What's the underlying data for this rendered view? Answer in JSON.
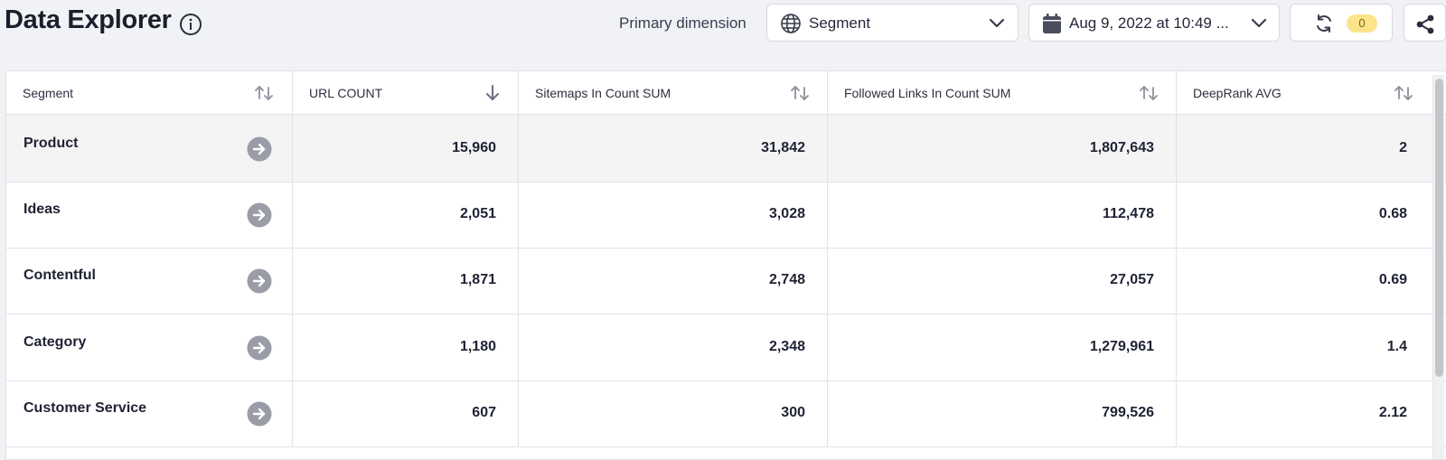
{
  "header": {
    "title": "Data Explorer",
    "info_icon": "info-circle-icon",
    "primary_dimension_label": "Primary dimension",
    "dimension_select": {
      "value": "Segment",
      "icon": "globe-icon"
    },
    "date_select": {
      "value": "Aug 9, 2022 at 10:49 ...",
      "icon": "calendar-icon"
    },
    "refresh": {
      "icon": "refresh-icon",
      "count": "0"
    },
    "share": {
      "icon": "share-icon"
    }
  },
  "table": {
    "columns": [
      {
        "label": "Segment",
        "sort": "unsorted"
      },
      {
        "label": "URL COUNT",
        "sort": "descending"
      },
      {
        "label": "Sitemaps In Count SUM",
        "sort": "unsorted"
      },
      {
        "label": "Followed Links In Count SUM",
        "sort": "unsorted"
      },
      {
        "label": "DeepRank AVG",
        "sort": "unsorted"
      }
    ],
    "rows": [
      {
        "segment": "Product",
        "url_count": "15,960",
        "sitemaps": "31,842",
        "followed_links": "1,807,643",
        "deeprank": "2",
        "selected": true
      },
      {
        "segment": "Ideas",
        "url_count": "2,051",
        "sitemaps": "3,028",
        "followed_links": "112,478",
        "deeprank": "0.68"
      },
      {
        "segment": "Contentful",
        "url_count": "1,871",
        "sitemaps": "2,748",
        "followed_links": "27,057",
        "deeprank": "0.69"
      },
      {
        "segment": "Category",
        "url_count": "1,180",
        "sitemaps": "2,348",
        "followed_links": "1,279,961",
        "deeprank": "1.4"
      },
      {
        "segment": "Customer Service",
        "url_count": "607",
        "sitemaps": "300",
        "followed_links": "799,526",
        "deeprank": "2.12"
      }
    ]
  },
  "colors": {
    "badge": "#fbe48a",
    "row_selected": "#f4f4f5",
    "go_icon": "#9a9ca8"
  }
}
